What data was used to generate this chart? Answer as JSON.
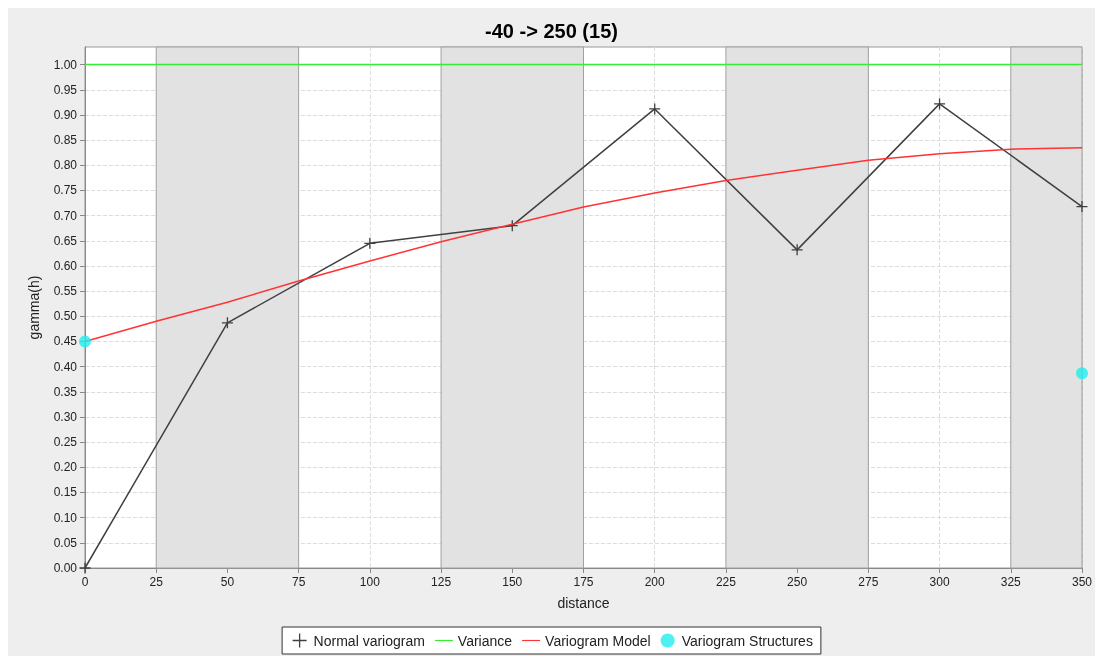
{
  "chart_data": {
    "type": "line",
    "title": "-40 -> 250 (15)",
    "xlabel": "distance",
    "ylabel": "gamma(h)",
    "xlim": [
      0,
      350
    ],
    "xticks": [
      0,
      25,
      50,
      75,
      100,
      125,
      150,
      175,
      200,
      225,
      250,
      275,
      300,
      325,
      350
    ],
    "ylim": [
      0,
      1.035
    ],
    "yticks": [
      {
        "value": 0,
        "label": "0.00"
      },
      {
        "value": 0.05,
        "label": "0.05"
      },
      {
        "value": 0.1,
        "label": "0.10"
      },
      {
        "value": 0.15,
        "label": "0.15"
      },
      {
        "value": 0.2,
        "label": "0.20"
      },
      {
        "value": 0.25,
        "label": "0.25"
      },
      {
        "value": 0.3,
        "label": "0.30"
      },
      {
        "value": 0.35,
        "label": "0.35"
      },
      {
        "value": 0.4,
        "label": "0.40"
      },
      {
        "value": 0.45,
        "label": "0.45"
      },
      {
        "value": 0.5,
        "label": "0.50"
      },
      {
        "value": 0.55,
        "label": "0.55"
      },
      {
        "value": 0.6,
        "label": "0.60"
      },
      {
        "value": 0.65,
        "label": "0.65"
      },
      {
        "value": 0.7,
        "label": "0.70"
      },
      {
        "value": 0.75,
        "label": "0.75"
      },
      {
        "value": 0.8,
        "label": "0.80"
      },
      {
        "value": 0.85,
        "label": "0.85"
      },
      {
        "value": 0.9,
        "label": "0.90"
      },
      {
        "value": 0.95,
        "label": "0.95"
      },
      {
        "value": 1,
        "label": "1.00"
      }
    ],
    "grid": true,
    "legend": "bottom",
    "bands": [
      {
        "axis": "x",
        "from": 25,
        "to": 75,
        "color": "#e2e2e2"
      },
      {
        "axis": "x",
        "from": 125,
        "to": 175,
        "color": "#e2e2e2"
      },
      {
        "axis": "x",
        "from": 225,
        "to": 275,
        "color": "#e2e2e2"
      },
      {
        "axis": "x",
        "from": 325,
        "to": 350,
        "color": "#e2e2e2"
      }
    ],
    "series": [
      {
        "name": "Normal variogram",
        "color": "#404040",
        "marker": "cross",
        "x": [
          0,
          50,
          100,
          150,
          200,
          250,
          300,
          350
        ],
        "values": [
          0,
          0.487,
          0.645,
          0.68,
          0.912,
          0.632,
          0.922,
          0.718
        ]
      },
      {
        "name": "Variance",
        "color": "#33ee33",
        "marker": "none",
        "x": [
          0,
          350
        ],
        "values": [
          1,
          1
        ]
      },
      {
        "name": "Variogram Model",
        "color": "#ff3333",
        "marker": "none",
        "x": [
          0,
          25,
          50,
          75,
          100,
          125,
          150,
          175,
          200,
          225,
          250,
          275,
          300,
          325,
          350
        ],
        "values": [
          0.45,
          0.49,
          0.528,
          0.57,
          0.61,
          0.648,
          0.683,
          0.717,
          0.745,
          0.77,
          0.79,
          0.81,
          0.823,
          0.832,
          0.835
        ]
      },
      {
        "name": "Variogram Structures",
        "type": "scatter",
        "color": "#22eeee",
        "marker": "circle",
        "x": [
          0,
          350
        ],
        "values": [
          0.45,
          0.387
        ]
      }
    ]
  }
}
